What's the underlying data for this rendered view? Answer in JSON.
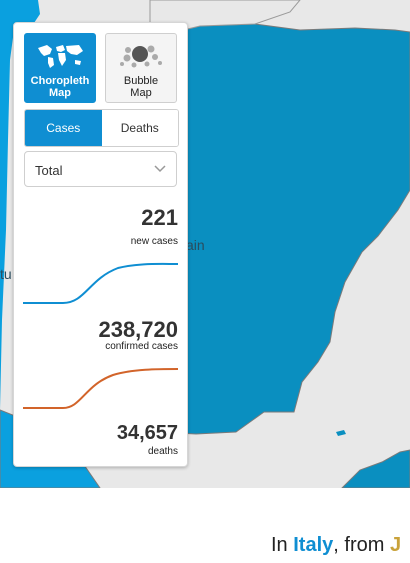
{
  "map": {
    "labels": {
      "spain_partial": "ain",
      "portugal_partial": "tu"
    },
    "colors": {
      "water": "#e8e8e8",
      "country_main": "#0a8fc0",
      "country_light": "#0aa0df"
    }
  },
  "panel": {
    "map_types": [
      {
        "label": "Choropleth\nMap",
        "icon": "world-map-icon",
        "active": true
      },
      {
        "label": "Bubble\nMap",
        "icon": "bubbles-icon",
        "active": false
      }
    ],
    "tabs": [
      {
        "label": "Cases",
        "active": true
      },
      {
        "label": "Deaths",
        "active": false
      }
    ],
    "select": {
      "value": "Total"
    },
    "metrics": {
      "new_cases": {
        "value": "221",
        "label": "new cases"
      },
      "confirmed": {
        "value": "238,720",
        "label": "confirmed cases",
        "color": "#0f8ed2"
      },
      "deaths": {
        "value": "34,657",
        "label": "deaths",
        "color": "#d2642a"
      }
    }
  },
  "bottom": {
    "prefix": "In ",
    "country": "Italy",
    "suffix": ", from ",
    "trailing_glyph": "J"
  },
  "colors": {
    "accent": "#0f8ed2"
  }
}
